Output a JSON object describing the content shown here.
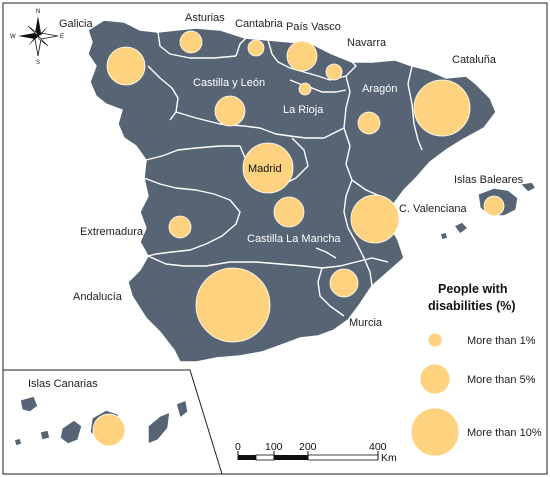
{
  "map": {
    "regions": [
      {
        "name": "Galicia"
      },
      {
        "name": "Asturias"
      },
      {
        "name": "Cantabria"
      },
      {
        "name": "País Vasco"
      },
      {
        "name": "Navarra"
      },
      {
        "name": "Cataluña"
      },
      {
        "name": "Castilla y León"
      },
      {
        "name": "Aragón"
      },
      {
        "name": "La Rioja"
      },
      {
        "name": "Madrid"
      },
      {
        "name": "Islas Baleares"
      },
      {
        "name": "C. Valenciana"
      },
      {
        "name": "Extremadura"
      },
      {
        "name": "Castilla La Mancha"
      },
      {
        "name": "Andalucía"
      },
      {
        "name": "Murcia"
      },
      {
        "name": "Islas Canarias"
      }
    ],
    "bubble_color": "#ffd27f",
    "land_color": "#566473"
  },
  "legend": {
    "title_line1": "People with",
    "title_line2": "disabilities (%)",
    "items": [
      {
        "label": "More than 1%"
      },
      {
        "label": "More than 5%"
      },
      {
        "label": "More than 10%"
      }
    ]
  },
  "scale_bar": {
    "ticks": [
      "0",
      "100",
      "200",
      "400"
    ],
    "unit": "Km"
  },
  "compass": {
    "n": "N",
    "s": "S",
    "e": "E",
    "w": "W"
  }
}
